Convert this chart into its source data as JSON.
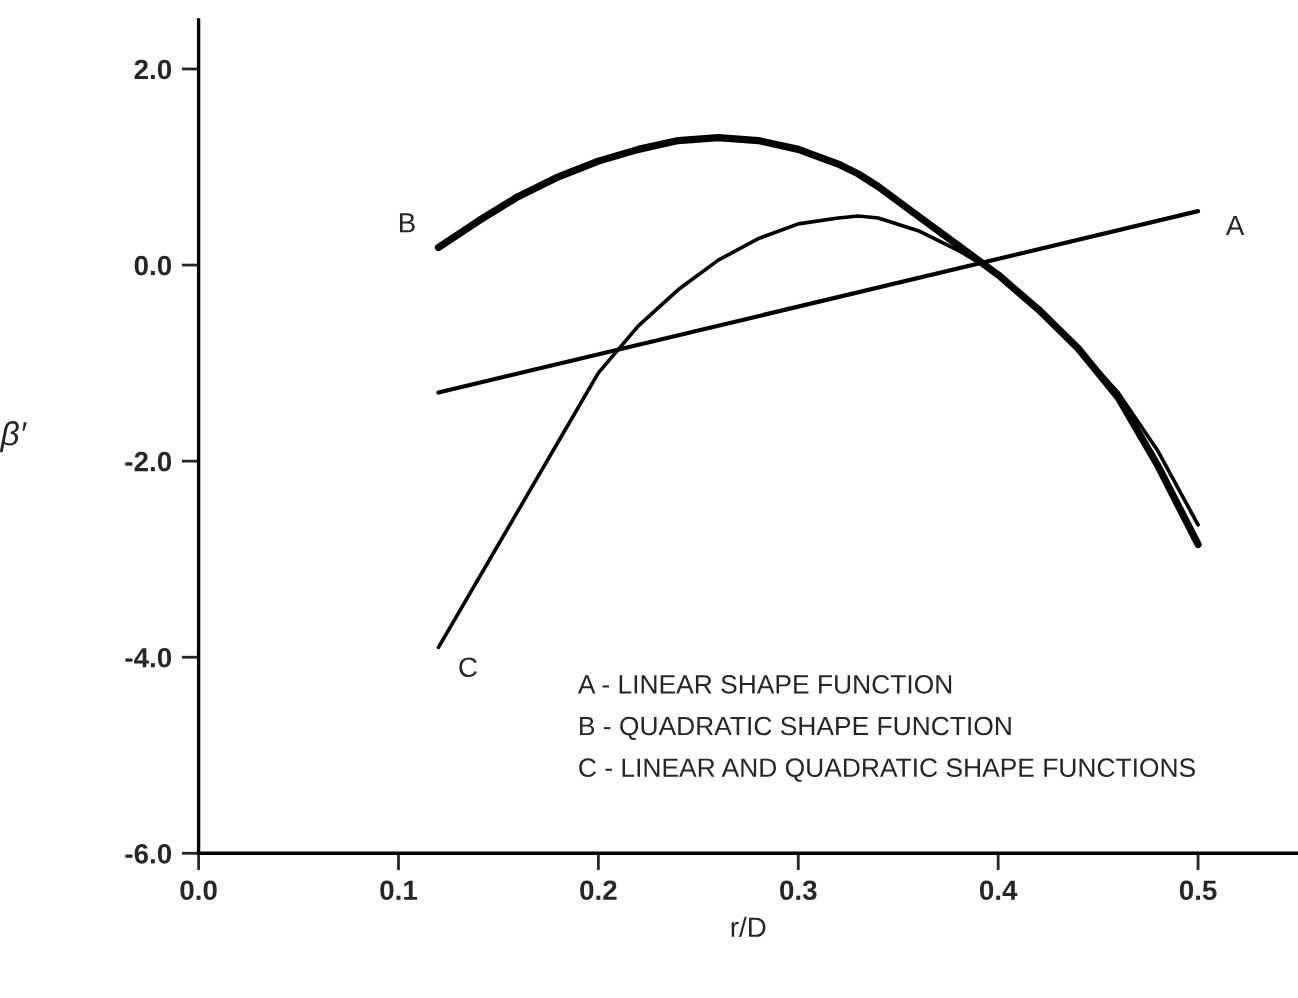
{
  "chart_data": {
    "type": "line",
    "xlabel": "r/D",
    "ylabel": "β′",
    "x": [
      0.12,
      0.14,
      0.16,
      0.18,
      0.2,
      0.22,
      0.24,
      0.26,
      0.28,
      0.3,
      0.32,
      0.33,
      0.34,
      0.36,
      0.38,
      0.39,
      0.4,
      0.42,
      0.44,
      0.46,
      0.48,
      0.5
    ],
    "series": [
      {
        "name": "A",
        "color": "#000000",
        "x": [
          0.12,
          0.5
        ],
        "values": [
          -1.3,
          0.55
        ]
      },
      {
        "name": "B",
        "color": "#000000",
        "values": [
          0.18,
          0.45,
          0.7,
          0.9,
          1.06,
          1.18,
          1.27,
          1.3,
          1.27,
          1.18,
          1.03,
          0.93,
          0.8,
          0.5,
          0.2,
          0.05,
          -0.1,
          -0.45,
          -0.85,
          -1.35,
          -2.05,
          -2.85
        ]
      },
      {
        "name": "C",
        "color": "#000000",
        "values": [
          -3.9,
          -3.2,
          -2.5,
          -1.8,
          -1.1,
          -0.62,
          -0.25,
          0.05,
          0.27,
          0.42,
          0.48,
          0.5,
          0.48,
          0.35,
          0.15,
          0.03,
          -0.1,
          -0.45,
          -0.85,
          -1.3,
          -1.9,
          -2.65
        ]
      }
    ],
    "xlim": [
      0,
      0.55
    ],
    "ylim": [
      -6,
      2.5
    ],
    "xticks": [
      {
        "value": 0,
        "label": "0.0"
      },
      {
        "value": 0.1,
        "label": "0.1"
      },
      {
        "value": 0.2,
        "label": "0.2"
      },
      {
        "value": 0.3,
        "label": "0.3"
      },
      {
        "value": 0.4,
        "label": "0.4"
      },
      {
        "value": 0.5,
        "label": "0.5"
      }
    ],
    "yticks": [
      {
        "value": -6,
        "label": "-6.0"
      },
      {
        "value": -4,
        "label": "-4.0"
      },
      {
        "value": -2,
        "label": "-2.0"
      },
      {
        "value": 0,
        "label": "0.0"
      },
      {
        "value": 2,
        "label": "2.0"
      }
    ],
    "annotations": [
      "A - LINEAR SHAPE FUNCTION",
      "B - QUADRATIC SHAPE FUNCTION",
      "C - LINEAR AND QUADRATIC SHAPE FUNCTIONS"
    ],
    "grid": false,
    "legend": false,
    "marker": "none",
    "line_style": "solid"
  }
}
